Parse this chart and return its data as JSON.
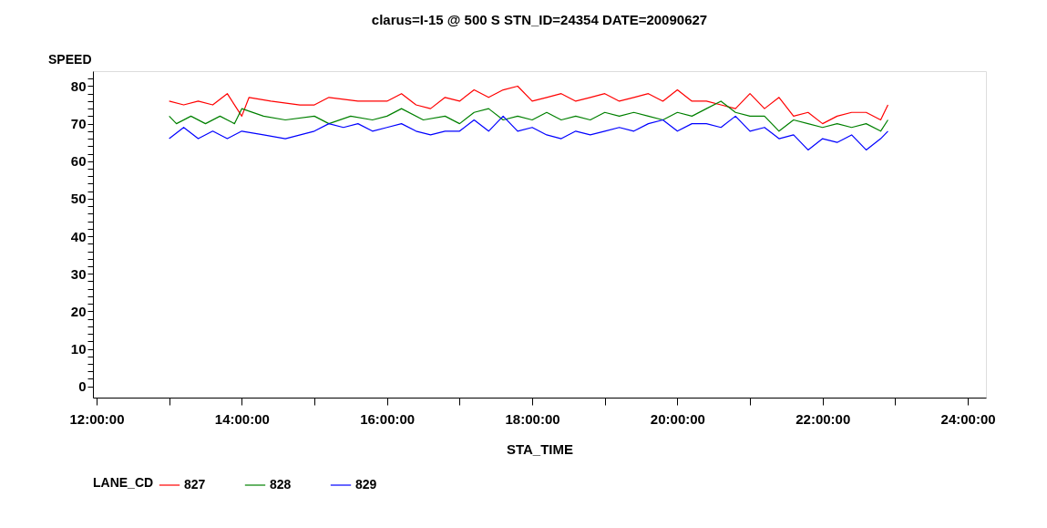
{
  "chart_data": {
    "type": "line",
    "title": "clarus=I-15 @ 500 S STN_ID=24354 DATE=20090627",
    "xlabel": "STA_TIME",
    "ylabel": "SPEED",
    "legend_title": "LANE_CD",
    "legend": "bottom",
    "grid": false,
    "marker": "none",
    "line_style": "solid",
    "xlim": [
      11.95,
      24.25
    ],
    "xticks": [
      {
        "value": 12,
        "label": "12:00:00"
      },
      {
        "value": 13,
        "label": null
      },
      {
        "value": 14,
        "label": "14:00:00"
      },
      {
        "value": 15,
        "label": null
      },
      {
        "value": 16,
        "label": "16:00:00"
      },
      {
        "value": 17,
        "label": null
      },
      {
        "value": 18,
        "label": "18:00:00"
      },
      {
        "value": 19,
        "label": null
      },
      {
        "value": 20,
        "label": "20:00:00"
      },
      {
        "value": 21,
        "label": null
      },
      {
        "value": 22,
        "label": "22:00:00"
      },
      {
        "value": 23,
        "label": null
      },
      {
        "value": 24,
        "label": "24:00:00"
      }
    ],
    "ylim": [
      -3,
      84
    ],
    "yticks": [
      0,
      {
        "value": 2,
        "label": null
      },
      {
        "value": 4,
        "label": null
      },
      {
        "value": 6,
        "label": null
      },
      {
        "value": 8,
        "label": null
      },
      10,
      {
        "value": 12,
        "label": null
      },
      {
        "value": 14,
        "label": null
      },
      {
        "value": 16,
        "label": null
      },
      {
        "value": 18,
        "label": null
      },
      20,
      {
        "value": 22,
        "label": null
      },
      {
        "value": 24,
        "label": null
      },
      {
        "value": 26,
        "label": null
      },
      {
        "value": 28,
        "label": null
      },
      30,
      {
        "value": 32,
        "label": null
      },
      {
        "value": 34,
        "label": null
      },
      {
        "value": 36,
        "label": null
      },
      {
        "value": 38,
        "label": null
      },
      40,
      {
        "value": 42,
        "label": null
      },
      {
        "value": 44,
        "label": null
      },
      {
        "value": 46,
        "label": null
      },
      {
        "value": 48,
        "label": null
      },
      50,
      {
        "value": 52,
        "label": null
      },
      {
        "value": 54,
        "label": null
      },
      {
        "value": 56,
        "label": null
      },
      {
        "value": 58,
        "label": null
      },
      60,
      {
        "value": 62,
        "label": null
      },
      {
        "value": 64,
        "label": null
      },
      {
        "value": 66,
        "label": null
      },
      {
        "value": 68,
        "label": null
      },
      70,
      {
        "value": 72,
        "label": null
      },
      {
        "value": 74,
        "label": null
      },
      {
        "value": 76,
        "label": null
      },
      {
        "value": 78,
        "label": null
      },
      80,
      {
        "value": 82,
        "label": null
      }
    ],
    "series": [
      {
        "name": "827",
        "color": "#ff0000",
        "x": [
          13.0,
          13.2,
          13.4,
          13.6,
          13.8,
          14.0,
          14.1,
          14.4,
          14.8,
          15.0,
          15.2,
          15.6,
          16.0,
          16.2,
          16.4,
          16.6,
          16.8,
          17.0,
          17.2,
          17.4,
          17.6,
          17.8,
          18.0,
          18.2,
          18.4,
          18.6,
          18.8,
          19.0,
          19.2,
          19.4,
          19.6,
          19.8,
          20.0,
          20.2,
          20.4,
          20.6,
          20.8,
          21.0,
          21.2,
          21.4,
          21.6,
          21.8,
          22.0,
          22.2,
          22.4,
          22.6,
          22.8,
          22.9
        ],
        "values": [
          76,
          75,
          76,
          75,
          78,
          72,
          77,
          76,
          75,
          75,
          77,
          76,
          76,
          78,
          75,
          74,
          77,
          76,
          79,
          77,
          79,
          80,
          76,
          77,
          78,
          76,
          77,
          78,
          76,
          77,
          78,
          76,
          79,
          76,
          76,
          75,
          74,
          78,
          74,
          77,
          72,
          73,
          70,
          72,
          73,
          73,
          71,
          75
        ]
      },
      {
        "name": "828",
        "color": "#008000",
        "x": [
          13.0,
          13.1,
          13.3,
          13.5,
          13.7,
          13.9,
          14.0,
          14.3,
          14.6,
          15.0,
          15.2,
          15.5,
          15.8,
          16.0,
          16.2,
          16.5,
          16.8,
          17.0,
          17.2,
          17.4,
          17.6,
          17.8,
          18.0,
          18.2,
          18.4,
          18.6,
          18.8,
          19.0,
          19.2,
          19.4,
          19.6,
          19.8,
          20.0,
          20.2,
          20.4,
          20.6,
          20.8,
          21.0,
          21.2,
          21.4,
          21.6,
          21.8,
          22.0,
          22.2,
          22.4,
          22.6,
          22.8,
          22.9
        ],
        "values": [
          72,
          70,
          72,
          70,
          72,
          70,
          74,
          72,
          71,
          72,
          70,
          72,
          71,
          72,
          74,
          71,
          72,
          70,
          73,
          74,
          71,
          72,
          71,
          73,
          71,
          72,
          71,
          73,
          72,
          73,
          72,
          71,
          73,
          72,
          74,
          76,
          73,
          72,
          72,
          68,
          71,
          70,
          69,
          70,
          69,
          70,
          68,
          71
        ]
      },
      {
        "name": "829",
        "color": "#0000ff",
        "x": [
          13.0,
          13.2,
          13.4,
          13.6,
          13.8,
          14.0,
          14.3,
          14.6,
          15.0,
          15.2,
          15.4,
          15.6,
          15.8,
          16.0,
          16.2,
          16.4,
          16.6,
          16.8,
          17.0,
          17.2,
          17.4,
          17.6,
          17.8,
          18.0,
          18.2,
          18.4,
          18.6,
          18.8,
          19.0,
          19.2,
          19.4,
          19.6,
          19.8,
          20.0,
          20.2,
          20.4,
          20.6,
          20.8,
          21.0,
          21.2,
          21.4,
          21.6,
          21.8,
          22.0,
          22.2,
          22.4,
          22.6,
          22.8,
          22.9
        ],
        "values": [
          66,
          69,
          66,
          68,
          66,
          68,
          67,
          66,
          68,
          70,
          69,
          70,
          68,
          69,
          70,
          68,
          67,
          68,
          68,
          71,
          68,
          72,
          68,
          69,
          67,
          66,
          68,
          67,
          68,
          69,
          68,
          70,
          71,
          68,
          70,
          70,
          69,
          72,
          68,
          69,
          66,
          67,
          63,
          66,
          65,
          67,
          63,
          66,
          68
        ]
      }
    ]
  }
}
